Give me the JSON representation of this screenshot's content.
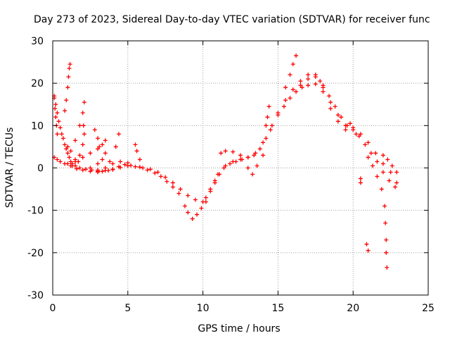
{
  "chart_data": {
    "type": "scatter",
    "title": "Day 273 of 2023, Sidereal Day-to-day VTEC variation (SDTVAR) for receiver func",
    "xlabel": "GPS time / hours",
    "ylabel": "SDTVAR / TECUs",
    "xlim": [
      0,
      25
    ],
    "ylim": [
      -30,
      30
    ],
    "x_ticks": [
      0,
      5,
      10,
      15,
      20,
      25
    ],
    "y_ticks": [
      -30,
      -20,
      -10,
      0,
      10,
      20,
      30
    ],
    "grid": true,
    "marker": "plus",
    "colors": {
      "series": "#ff0000",
      "grid": "#a0a0a0",
      "axis": "#000000"
    },
    "series": [
      {
        "name": "SDTVAR",
        "points": [
          [
            0.1,
            16.5
          ],
          [
            0.2,
            15.0
          ],
          [
            0.3,
            13.0
          ],
          [
            0.4,
            11.0
          ],
          [
            0.5,
            9.5
          ],
          [
            0.6,
            8.0
          ],
          [
            0.7,
            7.0
          ],
          [
            0.8,
            5.5
          ],
          [
            0.9,
            4.5
          ],
          [
            1.0,
            3.5
          ],
          [
            1.1,
            2.5
          ],
          [
            1.2,
            1.5
          ],
          [
            1.3,
            1.0
          ],
          [
            1.5,
            0.5
          ],
          [
            1.8,
            0.0
          ],
          [
            2.2,
            -0.3
          ],
          [
            2.6,
            -0.5
          ],
          [
            3.0,
            -0.8
          ],
          [
            3.5,
            -0.6
          ],
          [
            4.0,
            -0.3
          ],
          [
            4.5,
            0.1
          ],
          [
            5.0,
            0.5
          ],
          [
            5.5,
            0.3
          ],
          [
            6.0,
            0.0
          ],
          [
            6.5,
            -0.3
          ],
          [
            7.0,
            -1.0
          ],
          [
            7.5,
            -2.2
          ],
          [
            8.0,
            -3.5
          ],
          [
            8.5,
            -5.0
          ],
          [
            9.0,
            -6.5
          ],
          [
            9.5,
            -7.5
          ],
          [
            10.0,
            -8.0
          ],
          [
            10.2,
            -7.0
          ],
          [
            10.5,
            -5.0
          ],
          [
            10.8,
            -3.0
          ],
          [
            11.0,
            -1.5
          ],
          [
            11.5,
            0.5
          ],
          [
            12.0,
            1.5
          ],
          [
            12.5,
            2.0
          ],
          [
            13.0,
            2.5
          ],
          [
            13.5,
            3.5
          ],
          [
            14.0,
            6.0
          ],
          [
            14.5,
            9.0
          ],
          [
            15.0,
            13.0
          ],
          [
            15.5,
            16.0
          ],
          [
            16.0,
            18.5
          ],
          [
            16.5,
            20.5
          ],
          [
            17.0,
            22.0
          ],
          [
            17.5,
            21.5
          ],
          [
            18.0,
            19.0
          ],
          [
            18.5,
            15.5
          ],
          [
            19.0,
            12.5
          ],
          [
            19.5,
            10.0
          ],
          [
            20.0,
            9.5
          ],
          [
            20.5,
            8.0
          ],
          [
            21.0,
            6.0
          ],
          [
            21.5,
            3.5
          ],
          [
            22.0,
            1.0
          ],
          [
            22.5,
            -1.0
          ],
          [
            22.9,
            -3.5
          ],
          [
            0.1,
            2.5
          ],
          [
            0.3,
            2.0
          ],
          [
            0.5,
            1.5
          ],
          [
            0.8,
            1.0
          ],
          [
            1.0,
            1.0
          ],
          [
            1.3,
            0.5
          ],
          [
            1.6,
            -0.2
          ],
          [
            2.0,
            -0.5
          ],
          [
            2.5,
            -0.8
          ],
          [
            3.0,
            -1.0
          ],
          [
            3.3,
            -0.8
          ],
          [
            3.7,
            -0.6
          ],
          [
            4.0,
            -0.4
          ],
          [
            4.4,
            0.3
          ],
          [
            4.8,
            0.8
          ],
          [
            5.2,
            0.6
          ],
          [
            5.8,
            0.2
          ],
          [
            6.3,
            -0.5
          ],
          [
            6.8,
            -1.2
          ],
          [
            7.2,
            -2.0
          ],
          [
            7.6,
            -3.2
          ],
          [
            8.0,
            -4.5
          ],
          [
            8.4,
            -6.0
          ],
          [
            8.8,
            -9.0
          ],
          [
            9.0,
            -10.5
          ],
          [
            9.3,
            -12.0
          ],
          [
            9.6,
            -11.0
          ],
          [
            9.9,
            -9.5
          ],
          [
            10.2,
            -8.0
          ],
          [
            10.5,
            -5.5
          ],
          [
            10.8,
            -3.5
          ],
          [
            11.1,
            -1.5
          ],
          [
            11.4,
            0.0
          ],
          [
            11.8,
            1.0
          ],
          [
            12.2,
            1.5
          ],
          [
            12.6,
            2.0
          ],
          [
            13.0,
            2.5
          ],
          [
            13.4,
            3.0
          ],
          [
            13.8,
            4.5
          ],
          [
            14.2,
            7.0
          ],
          [
            14.6,
            10.0
          ],
          [
            15.0,
            12.5
          ],
          [
            15.4,
            14.5
          ],
          [
            15.8,
            16.5
          ],
          [
            16.2,
            18.0
          ],
          [
            16.6,
            19.0
          ],
          [
            17.0,
            19.5
          ],
          [
            17.5,
            19.8
          ],
          [
            18.0,
            19.5
          ],
          [
            18.4,
            17.0
          ],
          [
            18.8,
            14.5
          ],
          [
            19.2,
            12.0
          ],
          [
            19.6,
            10.0
          ],
          [
            20.0,
            9.0
          ],
          [
            20.4,
            7.5
          ],
          [
            20.8,
            5.5
          ],
          [
            21.2,
            3.5
          ],
          [
            21.6,
            1.5
          ],
          [
            22.0,
            -1.0
          ],
          [
            22.4,
            -3.0
          ],
          [
            22.8,
            -4.5
          ],
          [
            0.1,
            17.0
          ],
          [
            0.15,
            14.0
          ],
          [
            0.2,
            12.0
          ],
          [
            0.25,
            10.0
          ],
          [
            0.3,
            8.0
          ],
          [
            0.8,
            13.5
          ],
          [
            0.9,
            16.0
          ],
          [
            1.0,
            19.0
          ],
          [
            1.05,
            21.5
          ],
          [
            1.1,
            23.5
          ],
          [
            1.15,
            24.5
          ],
          [
            1.0,
            5.0
          ],
          [
            1.2,
            4.0
          ],
          [
            1.5,
            2.0
          ],
          [
            1.7,
            1.5
          ],
          [
            1.2,
            0.5
          ],
          [
            1.5,
            1.5
          ],
          [
            1.8,
            3.0
          ],
          [
            2.0,
            5.5
          ],
          [
            2.1,
            8.0
          ],
          [
            2.05,
            10.0
          ],
          [
            1.5,
            6.5
          ],
          [
            1.8,
            10.0
          ],
          [
            2.0,
            13.0
          ],
          [
            2.1,
            15.5
          ],
          [
            2.0,
            2.5
          ],
          [
            2.5,
            3.5
          ],
          [
            3.0,
            4.5
          ],
          [
            3.3,
            5.5
          ],
          [
            3.5,
            6.5
          ],
          [
            2.5,
            0.0
          ],
          [
            3.0,
            1.0
          ],
          [
            3.3,
            2.0
          ],
          [
            3.5,
            3.5
          ],
          [
            2.8,
            9.0
          ],
          [
            3.0,
            7.0
          ],
          [
            3.1,
            5.0
          ],
          [
            3.0,
            -0.5
          ],
          [
            3.5,
            0.0
          ],
          [
            3.8,
            1.5
          ],
          [
            4.2,
            5.0
          ],
          [
            4.4,
            8.0
          ],
          [
            4.0,
            1.0
          ],
          [
            4.5,
            1.5
          ],
          [
            5.0,
            1.2
          ],
          [
            5.5,
            5.5
          ],
          [
            5.6,
            4.0
          ],
          [
            5.8,
            2.0
          ],
          [
            11.2,
            3.5
          ],
          [
            11.5,
            4.0
          ],
          [
            12.0,
            3.8
          ],
          [
            12.5,
            3.0
          ],
          [
            13.0,
            0.0
          ],
          [
            13.3,
            -1.5
          ],
          [
            13.6,
            0.5
          ],
          [
            14.0,
            3.0
          ],
          [
            14.2,
            10.0
          ],
          [
            14.3,
            12.0
          ],
          [
            14.4,
            14.5
          ],
          [
            15.5,
            19.0
          ],
          [
            15.8,
            22.0
          ],
          [
            16.0,
            24.5
          ],
          [
            16.2,
            26.5
          ],
          [
            16.5,
            19.5
          ],
          [
            17.0,
            21.0
          ],
          [
            17.5,
            22.0
          ],
          [
            17.8,
            20.5
          ],
          [
            18.0,
            18.0
          ],
          [
            18.5,
            14.0
          ],
          [
            19.0,
            11.0
          ],
          [
            19.5,
            9.0
          ],
          [
            19.8,
            10.5
          ],
          [
            20.2,
            8.0
          ],
          [
            21.0,
            2.5
          ],
          [
            21.3,
            0.5
          ],
          [
            21.6,
            -2.0
          ],
          [
            21.9,
            -5.0
          ],
          [
            22.1,
            -9.0
          ],
          [
            22.15,
            -13.0
          ],
          [
            22.2,
            -17.0
          ],
          [
            22.2,
            -20.0
          ],
          [
            22.25,
            -23.5
          ],
          [
            22.0,
            3.0
          ],
          [
            22.3,
            2.0
          ],
          [
            22.6,
            0.5
          ],
          [
            22.9,
            -1.0
          ],
          [
            20.5,
            -2.5
          ],
          [
            20.5,
            -3.5
          ],
          [
            20.9,
            -18.0
          ],
          [
            21.0,
            -19.5
          ]
        ]
      }
    ]
  }
}
